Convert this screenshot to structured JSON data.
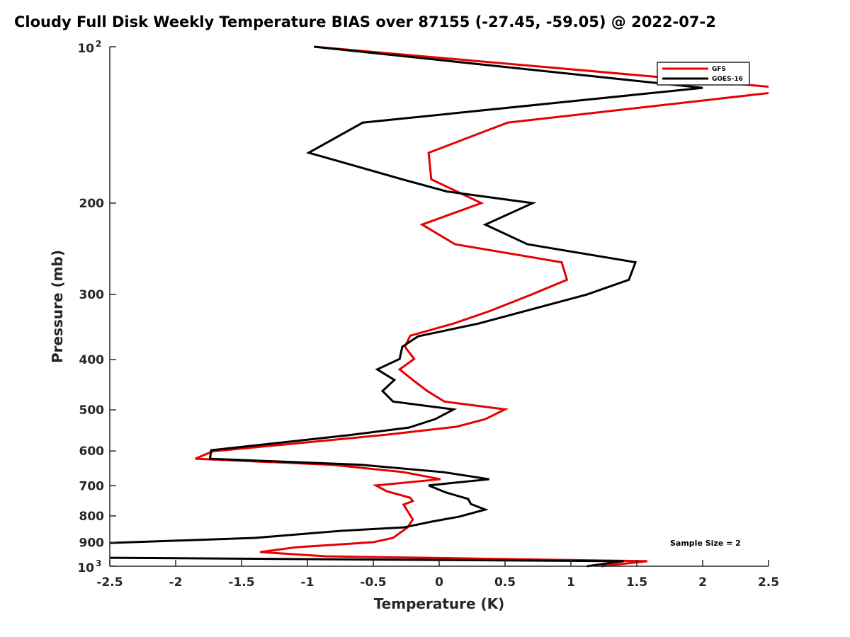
{
  "chart_data": {
    "type": "line",
    "title": "Cloudy Full Disk Weekly Temperature BIAS over 87155 (-27.45, -59.05) @ 2022-07-2",
    "xlabel": "Temperature (K)",
    "ylabel": "Pressure (mb)",
    "xlim": [
      -2.5,
      2.5
    ],
    "ylim": [
      100,
      1000
    ],
    "yscale": "log-reversed",
    "xticks": [
      "-2.5",
      "-2",
      "-1.5",
      "-1",
      "-0.5",
      "0",
      "0.5",
      "1",
      "1.5",
      "2",
      "2.5"
    ],
    "xtick_values": [
      -2.5,
      -2,
      -1.5,
      -1,
      -0.5,
      0,
      0.5,
      1,
      1.5,
      2,
      2.5
    ],
    "yticks": [
      {
        "value": 100,
        "base": "10",
        "exp": "2"
      },
      {
        "value": 200,
        "label": "200"
      },
      {
        "value": 300,
        "label": "300"
      },
      {
        "value": 400,
        "label": "400"
      },
      {
        "value": 500,
        "label": "500"
      },
      {
        "value": 600,
        "label": "600"
      },
      {
        "value": 700,
        "label": "700"
      },
      {
        "value": 800,
        "label": "800"
      },
      {
        "value": 900,
        "label": "900"
      },
      {
        "value": 1000,
        "base": "10",
        "exp": "3"
      }
    ],
    "legend_position": "top-right",
    "annotation": "Sample Size = 2",
    "series": [
      {
        "name": "GFS",
        "color": "#e60000",
        "points": [
          [
            -0.95,
            100
          ],
          [
            2.6,
            120
          ],
          [
            2.6,
            122
          ],
          [
            0.52,
            140
          ],
          [
            -0.08,
            160
          ],
          [
            -0.06,
            180
          ],
          [
            0.32,
            200
          ],
          [
            -0.13,
            220
          ],
          [
            0.12,
            240
          ],
          [
            0.93,
            260
          ],
          [
            0.97,
            281
          ],
          [
            0.7,
            300
          ],
          [
            0.38,
            323
          ],
          [
            0.11,
            341
          ],
          [
            -0.22,
            360
          ],
          [
            -0.26,
            378
          ],
          [
            -0.19,
            399
          ],
          [
            -0.3,
            418
          ],
          [
            -0.2,
            438
          ],
          [
            -0.09,
            460
          ],
          [
            0.04,
            482
          ],
          [
            0.5,
            499
          ],
          [
            0.35,
            521
          ],
          [
            0.13,
            539
          ],
          [
            -0.39,
            558
          ],
          [
            -1.72,
            601
          ],
          [
            -1.85,
            621
          ],
          [
            -0.81,
            638
          ],
          [
            -0.27,
            659
          ],
          [
            0.01,
            680
          ],
          [
            -0.48,
            699
          ],
          [
            -0.4,
            717
          ],
          [
            -0.22,
            738
          ],
          [
            -0.2,
            749
          ],
          [
            -0.27,
            761
          ],
          [
            -0.24,
            783
          ],
          [
            -0.2,
            813
          ],
          [
            -0.24,
            842
          ],
          [
            -0.35,
            882
          ],
          [
            -0.5,
            899
          ],
          [
            -1.08,
            919
          ],
          [
            -1.36,
            939
          ],
          [
            -0.86,
            957
          ],
          [
            1.58,
            978
          ],
          [
            1.23,
            1000
          ]
        ]
      },
      {
        "name": "GOES-16",
        "color": "#000000",
        "points": [
          [
            -0.95,
            100
          ],
          [
            2.0,
            120
          ],
          [
            -0.58,
            140
          ],
          [
            -0.99,
            160
          ],
          [
            -0.28,
            180
          ],
          [
            0.06,
            190
          ],
          [
            0.71,
            200
          ],
          [
            0.35,
            220
          ],
          [
            0.67,
            240
          ],
          [
            1.49,
            260
          ],
          [
            1.44,
            281
          ],
          [
            1.12,
            300
          ],
          [
            0.3,
            341
          ],
          [
            -0.16,
            361
          ],
          [
            -0.28,
            378
          ],
          [
            -0.3,
            399
          ],
          [
            -0.47,
            418
          ],
          [
            -0.34,
            438
          ],
          [
            -0.43,
            460
          ],
          [
            -0.35,
            482
          ],
          [
            0.11,
            499
          ],
          [
            -0.03,
            521
          ],
          [
            -0.23,
            541
          ],
          [
            -0.7,
            560
          ],
          [
            -1.73,
            598
          ],
          [
            -1.74,
            621
          ],
          [
            -0.59,
            638
          ],
          [
            0.03,
            659
          ],
          [
            0.38,
            680
          ],
          [
            -0.08,
            699
          ],
          [
            0.05,
            721
          ],
          [
            0.22,
            742
          ],
          [
            0.24,
            759
          ],
          [
            0.35,
            778
          ],
          [
            0.15,
            803
          ],
          [
            -0.05,
            820
          ],
          [
            -0.27,
            842
          ],
          [
            -0.75,
            855
          ],
          [
            -1.4,
            882
          ],
          [
            -2.6,
            904
          ],
          [
            -2.6,
            963
          ],
          [
            1.4,
            978
          ],
          [
            1.12,
            1000
          ]
        ]
      }
    ]
  }
}
